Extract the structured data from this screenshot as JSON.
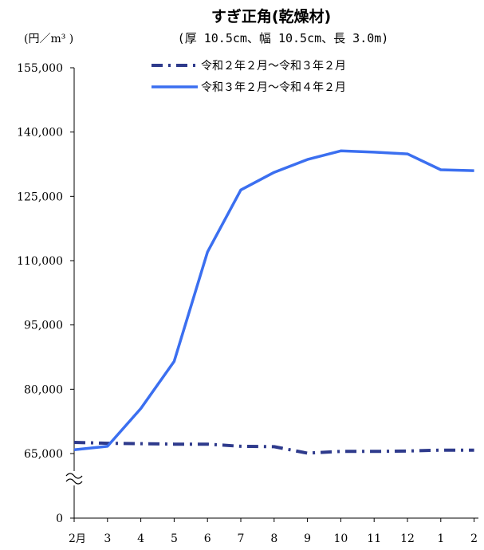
{
  "chart_data": {
    "type": "line",
    "title": "すぎ正角(乾燥材)",
    "subtitle": "(厚 10.5cm、幅 10.5cm、長 3.0m)",
    "ylabel": "(円／m³ )",
    "xlabel": "",
    "categories": [
      "2",
      "3",
      "4",
      "5",
      "6",
      "7",
      "8",
      "9",
      "10",
      "11",
      "12",
      "1",
      "2"
    ],
    "first_category_suffix": "月",
    "y_ticks": [
      "0",
      "65,000",
      "80,000",
      "95,000",
      "110,000",
      "125,000",
      "140,000",
      "155,000"
    ],
    "ylim": [
      65000,
      155000
    ],
    "axis_break": true,
    "legend_position": "top-center",
    "series": [
      {
        "name": "令和２年２月～令和３年２月",
        "style": "dash-dot",
        "color": "#2e3a8c",
        "values": [
          67600,
          67400,
          67300,
          67200,
          67200,
          66700,
          66600,
          65100,
          65500,
          65500,
          65600,
          65800,
          65800
        ]
      },
      {
        "name": "令和３年２月～令和４年２月",
        "style": "solid",
        "color": "#3b6ff0",
        "values": [
          65900,
          66700,
          75500,
          86500,
          112000,
          126500,
          130600,
          133600,
          135600,
          135300,
          134900,
          131200,
          131000
        ]
      }
    ]
  }
}
